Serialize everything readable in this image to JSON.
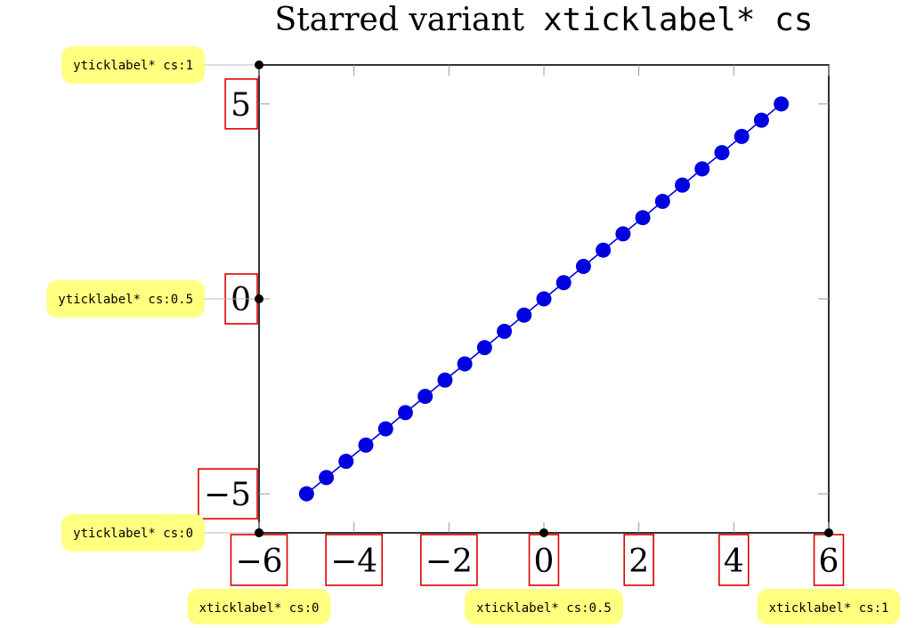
{
  "chart_data": {
    "type": "line",
    "title": {
      "text": "Starred variant",
      "code": "xticklabel* cs"
    },
    "xlabel": "",
    "ylabel": "",
    "xlim": [
      -6,
      6
    ],
    "ylim": [
      -6,
      6
    ],
    "x_ticks": [
      -6,
      -4,
      -2,
      0,
      2,
      4,
      6
    ],
    "y_ticks": [
      -5,
      0,
      5
    ],
    "x_tick_labels": [
      "−6",
      "−4",
      "−2",
      "0",
      "2",
      "4",
      "6"
    ],
    "y_tick_labels": [
      "−5",
      "0",
      "5"
    ],
    "grid": false,
    "series": [
      {
        "color": "#0000e0",
        "marker": "circle",
        "x": [
          -5,
          -4.583,
          -4.167,
          -3.75,
          -3.333,
          -2.917,
          -2.5,
          -2.083,
          -1.667,
          -1.25,
          -0.833,
          -0.417,
          0,
          0.417,
          0.833,
          1.25,
          1.667,
          2.083,
          2.5,
          2.917,
          3.333,
          3.75,
          4.167,
          4.583,
          5
        ],
        "y": [
          -5,
          -4.583,
          -4.167,
          -3.75,
          -3.333,
          -2.917,
          -2.5,
          -2.083,
          -1.667,
          -1.25,
          -0.833,
          -0.417,
          0,
          0.417,
          0.833,
          1.25,
          1.667,
          2.083,
          2.5,
          2.917,
          3.333,
          3.75,
          4.167,
          4.583,
          5
        ]
      }
    ],
    "annotations": {
      "y": [
        {
          "text": "yticklabel* cs:1",
          "pos": 1
        },
        {
          "text": "yticklabel* cs:0.5",
          "pos": 0.5
        },
        {
          "text": "yticklabel* cs:0",
          "pos": 0
        }
      ],
      "x": [
        {
          "text": "xticklabel* cs:0",
          "pos": 0
        },
        {
          "text": "xticklabel* cs:0.5",
          "pos": 0.5
        },
        {
          "text": "xticklabel* cs:1",
          "pos": 1
        }
      ]
    },
    "annotation_color": "#ffff80",
    "tick_box_color": "#e00000"
  }
}
